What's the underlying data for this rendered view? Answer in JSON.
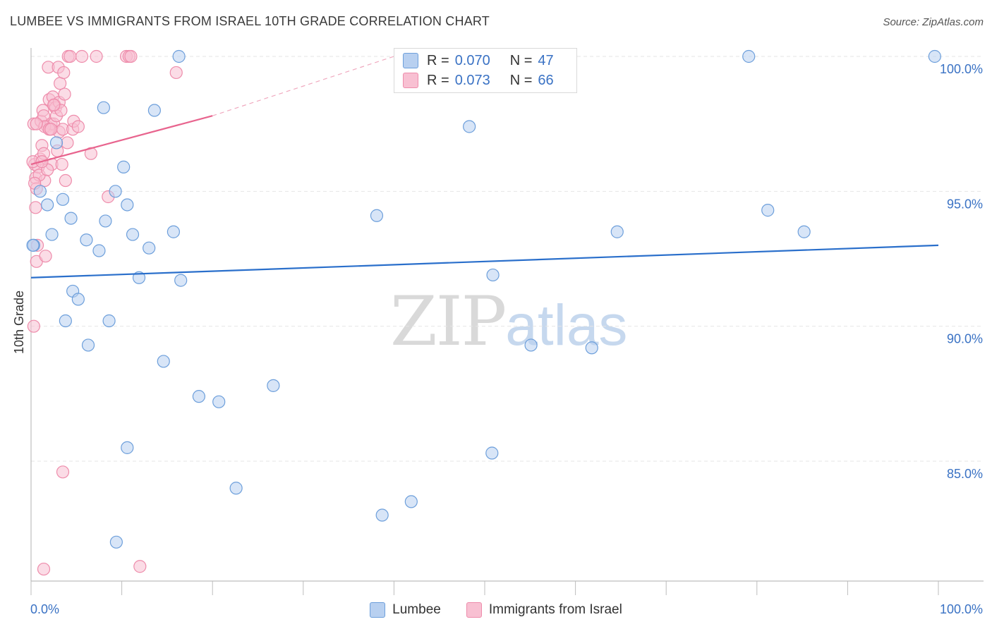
{
  "header": {
    "title": "LUMBEE VS IMMIGRANTS FROM ISRAEL 10TH GRADE CORRELATION CHART",
    "source": "Source: ZipAtlas.com"
  },
  "legend": {
    "series1": {
      "r_label": "R =",
      "r_value": "0.070",
      "n_label": "N =",
      "n_value": "47"
    },
    "series2": {
      "r_label": "R =",
      "r_value": "0.073",
      "n_label": "N =",
      "n_value": "66"
    }
  },
  "watermark": {
    "zip": "ZIP",
    "atlas": "atlas"
  },
  "colors": {
    "lumbee_fill": "#b8d0f0",
    "lumbee_stroke": "#6d9fdb",
    "lumbee_line": "#2a6fcb",
    "israel_fill": "#f8c0d2",
    "israel_stroke": "#ee8cab",
    "israel_line": "#e8648e",
    "tick_label": "#3a72c4"
  },
  "chart_data": {
    "type": "scatter",
    "title": "LUMBEE VS IMMIGRANTS FROM ISRAEL 10TH GRADE CORRELATION CHART",
    "xlabel": "",
    "ylabel": "10th Grade",
    "xlim": [
      0,
      100
    ],
    "ylim": [
      80.5,
      100.5
    ],
    "x_tick_labels": [
      "0.0%",
      "100.0%"
    ],
    "y_ticks": [
      85,
      90,
      95,
      100
    ],
    "y_tick_labels": [
      "85.0%",
      "90.0%",
      "95.0%",
      "100.0%"
    ],
    "grid": true,
    "legend_position": "top-center",
    "series": [
      {
        "name": "Lumbee",
        "r": 0.07,
        "n": 47,
        "trend": {
          "x": [
            0,
            100
          ],
          "y": [
            91.8,
            93.0
          ]
        },
        "points": [
          [
            0.3,
            93.0
          ],
          [
            1.0,
            95.0
          ],
          [
            1.8,
            94.5
          ],
          [
            2.3,
            93.4
          ],
          [
            2.8,
            96.8
          ],
          [
            3.5,
            94.7
          ],
          [
            4.4,
            94.0
          ],
          [
            4.6,
            91.3
          ],
          [
            5.2,
            91.0
          ],
          [
            3.8,
            90.2
          ],
          [
            6.1,
            93.2
          ],
          [
            7.5,
            92.8
          ],
          [
            8.0,
            98.1
          ],
          [
            8.2,
            93.9
          ],
          [
            8.6,
            90.2
          ],
          [
            9.3,
            95.0
          ],
          [
            6.3,
            89.3
          ],
          [
            10.2,
            95.9
          ],
          [
            10.6,
            94.5
          ],
          [
            11.2,
            93.4
          ],
          [
            11.9,
            91.8
          ],
          [
            13.0,
            92.9
          ],
          [
            13.6,
            98.0
          ],
          [
            14.6,
            88.7
          ],
          [
            15.7,
            93.5
          ],
          [
            16.3,
            100.0
          ],
          [
            16.5,
            91.7
          ],
          [
            18.5,
            87.4
          ],
          [
            20.7,
            87.2
          ],
          [
            22.6,
            84.0
          ],
          [
            26.7,
            87.8
          ],
          [
            10.6,
            85.5
          ],
          [
            9.4,
            82.0
          ],
          [
            38.7,
            83.0
          ],
          [
            38.1,
            94.1
          ],
          [
            41.9,
            83.5
          ],
          [
            48.3,
            97.4
          ],
          [
            50.8,
            85.3
          ],
          [
            50.9,
            91.9
          ],
          [
            55.1,
            89.3
          ],
          [
            61.8,
            89.2
          ],
          [
            64.6,
            93.5
          ],
          [
            79.1,
            100.0
          ],
          [
            81.2,
            94.3
          ],
          [
            85.2,
            93.5
          ],
          [
            99.6,
            100.0
          ],
          [
            0.2,
            93.0
          ]
        ]
      },
      {
        "name": "Immigrants from Israel",
        "r": 0.073,
        "n": 66,
        "trend": {
          "x": [
            0,
            20
          ],
          "y": [
            96.0,
            97.8
          ]
        },
        "trend_dashed": {
          "x": [
            20,
            40
          ],
          "y": [
            97.8,
            100.0
          ]
        },
        "points": [
          [
            0.3,
            97.5
          ],
          [
            0.4,
            96.0
          ],
          [
            0.5,
            95.5
          ],
          [
            0.5,
            94.4
          ],
          [
            0.6,
            95.1
          ],
          [
            0.6,
            92.4
          ],
          [
            0.7,
            93.0
          ],
          [
            0.3,
            90.0
          ],
          [
            1.0,
            96.2
          ],
          [
            1.1,
            97.6
          ],
          [
            1.2,
            96.7
          ],
          [
            1.3,
            98.0
          ],
          [
            1.4,
            97.8
          ],
          [
            1.4,
            96.4
          ],
          [
            1.5,
            95.4
          ],
          [
            1.6,
            92.6
          ],
          [
            1.8,
            97.4
          ],
          [
            1.9,
            99.6
          ],
          [
            2.0,
            98.4
          ],
          [
            2.1,
            97.3
          ],
          [
            2.2,
            97.5
          ],
          [
            2.3,
            96.0
          ],
          [
            2.4,
            98.5
          ],
          [
            2.5,
            97.5
          ],
          [
            2.6,
            98.2
          ],
          [
            2.7,
            98.1
          ],
          [
            2.8,
            97.8
          ],
          [
            2.9,
            96.5
          ],
          [
            3.0,
            99.6
          ],
          [
            3.1,
            98.3
          ],
          [
            3.1,
            97.2
          ],
          [
            3.2,
            99.0
          ],
          [
            3.3,
            98.0
          ],
          [
            3.4,
            96.0
          ],
          [
            3.5,
            97.3
          ],
          [
            3.6,
            99.4
          ],
          [
            3.7,
            98.6
          ],
          [
            3.8,
            95.4
          ],
          [
            4.0,
            96.8
          ],
          [
            4.1,
            100.0
          ],
          [
            4.3,
            100.0
          ],
          [
            4.6,
            97.3
          ],
          [
            4.7,
            97.6
          ],
          [
            5.2,
            97.4
          ],
          [
            5.6,
            100.0
          ],
          [
            6.6,
            96.4
          ],
          [
            7.2,
            100.0
          ],
          [
            8.5,
            94.8
          ],
          [
            10.5,
            100.0
          ],
          [
            10.8,
            100.0
          ],
          [
            11.0,
            100.0
          ],
          [
            16.0,
            99.4
          ],
          [
            1.4,
            81.0
          ],
          [
            12.0,
            81.1
          ],
          [
            3.5,
            84.6
          ],
          [
            0.8,
            95.9
          ],
          [
            0.9,
            95.6
          ],
          [
            1.5,
            97.4
          ],
          [
            2.0,
            97.3
          ],
          [
            2.5,
            98.2
          ],
          [
            0.2,
            96.1
          ],
          [
            0.6,
            97.5
          ],
          [
            1.8,
            95.8
          ],
          [
            2.2,
            97.3
          ],
          [
            0.4,
            95.3
          ],
          [
            1.2,
            96.1
          ]
        ]
      }
    ]
  },
  "bottom_legend": {
    "series1": "Lumbee",
    "series2": "Immigrants from Israel"
  }
}
